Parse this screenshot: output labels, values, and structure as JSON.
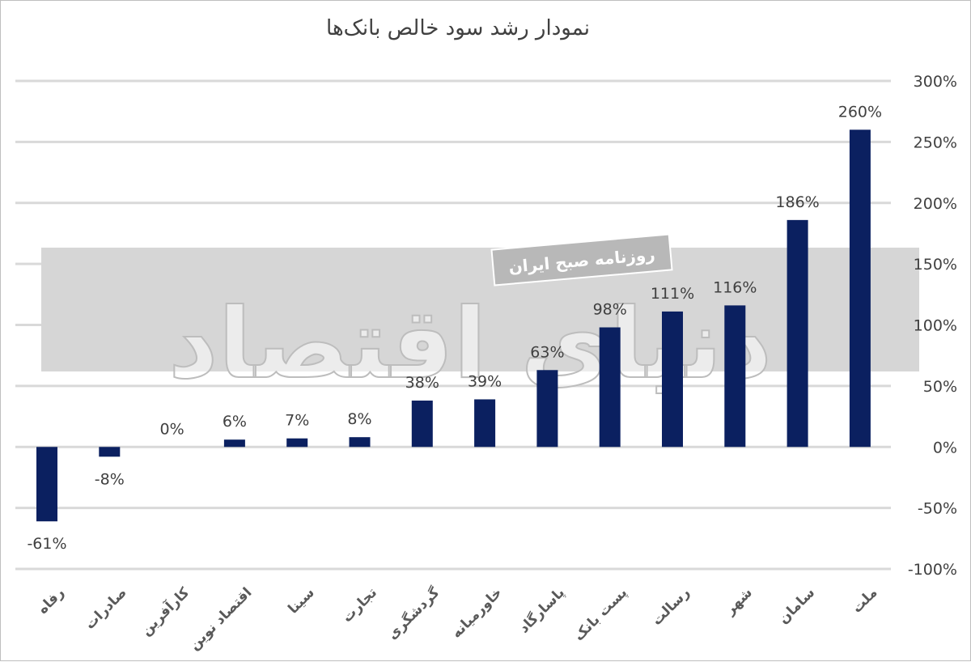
{
  "chart_data": {
    "type": "bar",
    "title": "نمودار رشد سود خالص بانک‌ها",
    "categories": [
      "رفاه",
      "صادرات",
      "کارآفرین",
      "اقتصاد نوین",
      "سینا",
      "تجارت",
      "گردشگری",
      "خاورمیانه",
      "پاسارگاد",
      "پست بانک",
      "رسالت",
      "شهر",
      "سامان",
      "ملت"
    ],
    "values": [
      -61,
      -8,
      0,
      6,
      7,
      8,
      38,
      39,
      63,
      98,
      111,
      116,
      186,
      260
    ],
    "data_labels": [
      "-61%",
      "-8%",
      "0%",
      "6%",
      "7%",
      "8%",
      "38%",
      "39%",
      "63%",
      "98%",
      "111%",
      "116%",
      "186%",
      "260%"
    ],
    "yticks": [
      300,
      250,
      200,
      150,
      100,
      50,
      0,
      -50,
      -100
    ],
    "ytick_labels": [
      "300%",
      "250%",
      "200%",
      "150%",
      "100%",
      "50%",
      "0%",
      "-50%",
      "-100%"
    ],
    "ylim": [
      -100,
      300
    ],
    "ylabel": "",
    "xlabel": "",
    "y_axis_position": "right",
    "grid": true,
    "legend": "none",
    "bar_color": "#0b2060"
  },
  "watermark": {
    "main_text": "دنیای اقتصاد",
    "sub_text": "روزنامه صبح ایران"
  }
}
